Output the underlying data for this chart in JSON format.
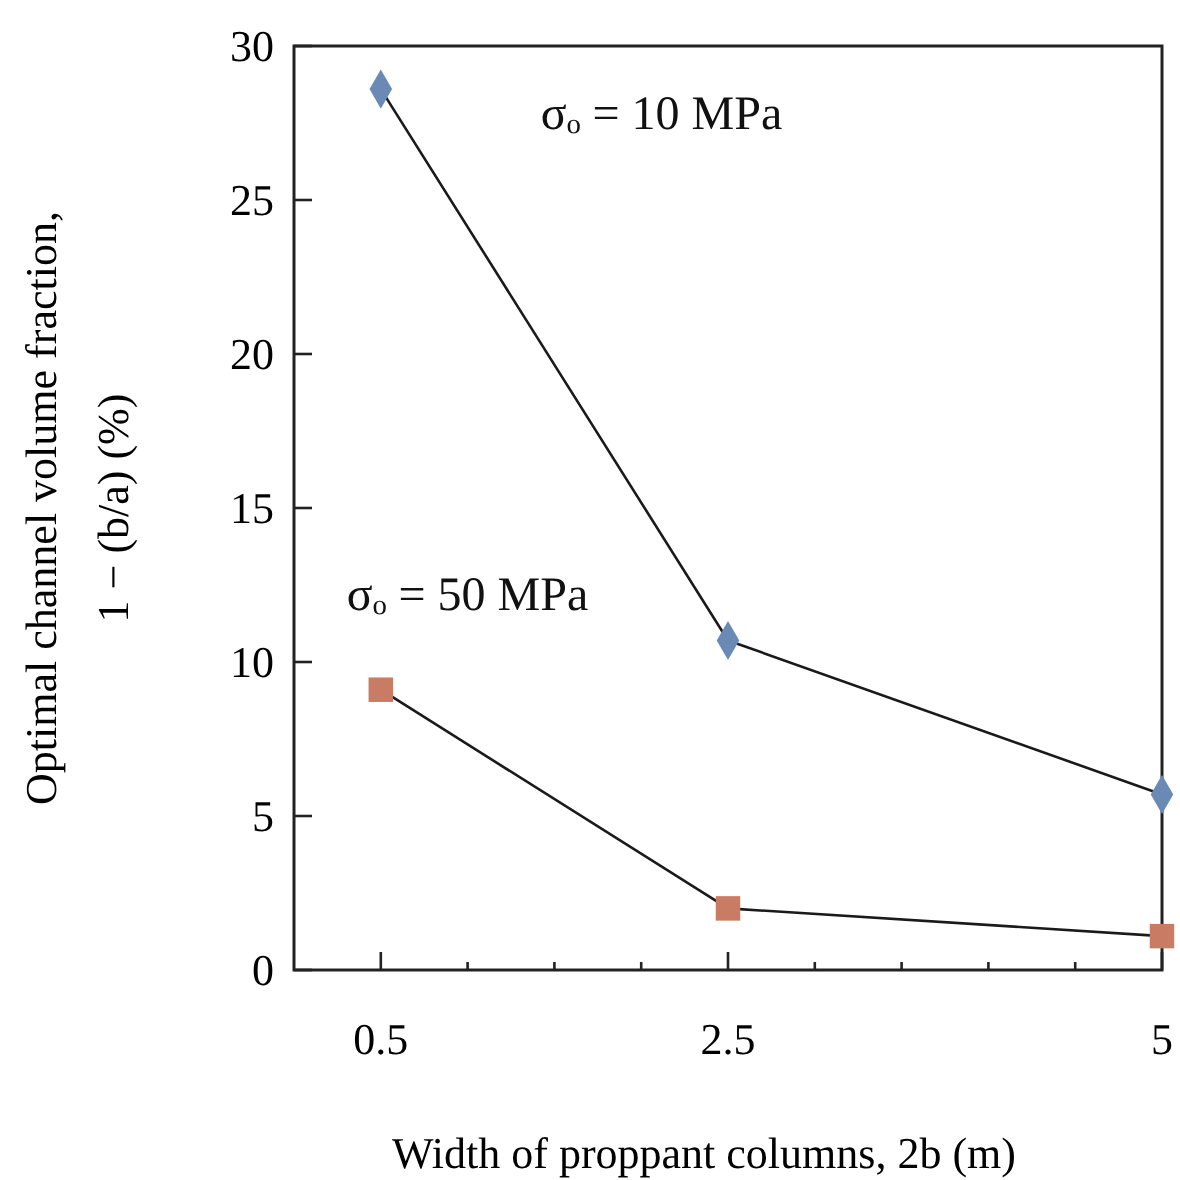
{
  "chart_data": {
    "type": "line",
    "xlabel": "Width of proppant columns, 2b (m)",
    "ylabel": "Optimal channel volume fraction,\n1 − (b/a) (%)",
    "xlim": [
      0,
      5
    ],
    "xticks": [
      {
        "value": 0.5,
        "label": "0.5"
      },
      {
        "value": 1,
        "label": null
      },
      {
        "value": 1.5,
        "label": null
      },
      {
        "value": 2,
        "label": null
      },
      {
        "value": 2.5,
        "label": "2.5"
      },
      {
        "value": 3,
        "label": null
      },
      {
        "value": 3.5,
        "label": null
      },
      {
        "value": 4,
        "label": null
      },
      {
        "value": 4.5,
        "label": null
      },
      {
        "value": 5,
        "label": "5"
      }
    ],
    "ylim": [
      0,
      30
    ],
    "yticks": [
      0,
      5,
      10,
      15,
      20,
      25,
      30
    ],
    "grid": false,
    "series": [
      {
        "name": "σₒ = 10 MPa",
        "color": "#6a8ab5",
        "marker": "diamond",
        "x": [
          0.5,
          2.5,
          5
        ],
        "values": [
          28.6,
          10.7,
          5.7
        ]
      },
      {
        "name": "σₒ = 50 MPa",
        "color": "#c97b63",
        "marker": "square",
        "x": [
          0.5,
          2.5,
          5
        ],
        "values": [
          9.1,
          2.0,
          1.1
        ]
      }
    ]
  }
}
